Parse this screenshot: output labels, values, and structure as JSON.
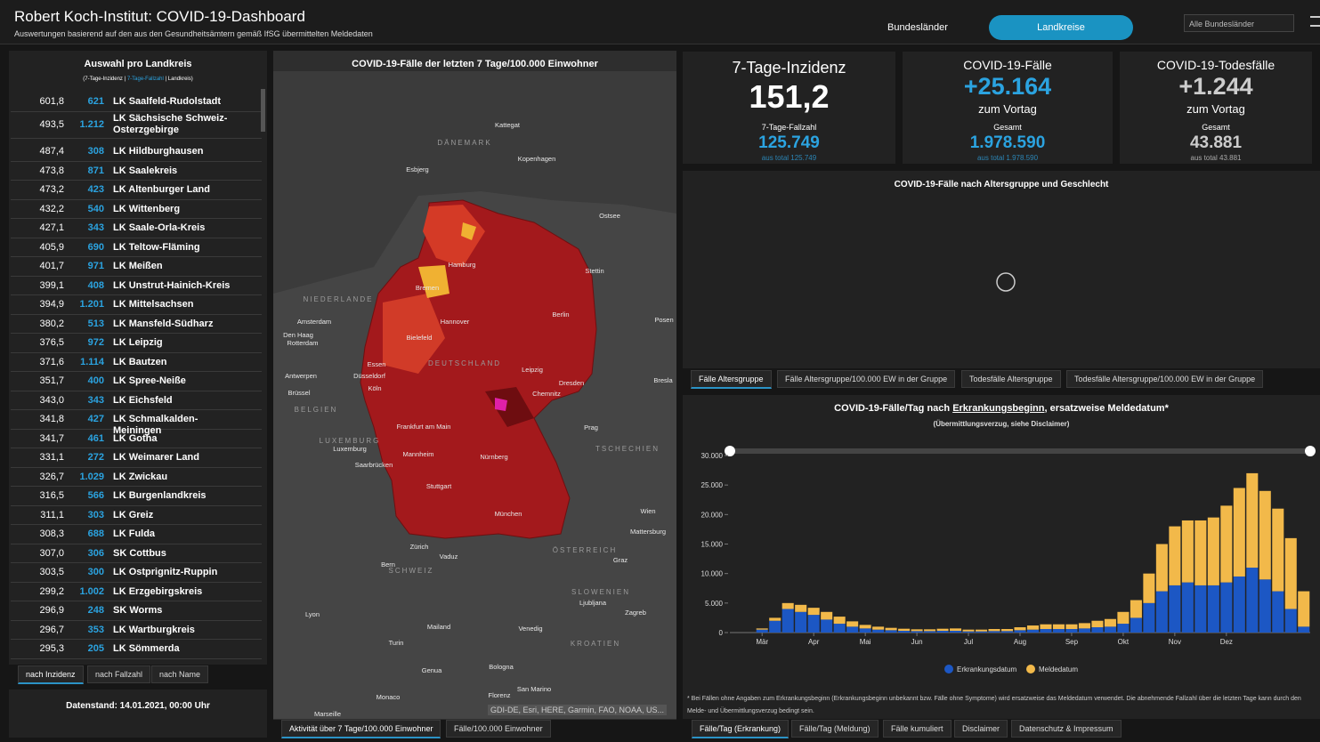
{
  "header": {
    "title": "Robert Koch-Institut: COVID-19-Dashboard",
    "subtitle": "Auswertungen basierend auf den aus den Gesundheitsämtern gemäß IfSG übermittelten Meldedaten",
    "nav": [
      "Bundesländer",
      "Landkreise"
    ],
    "dropdown": "Alle Bundesländer"
  },
  "district_list": {
    "title": "Auswahl pro Landkreis",
    "subtitle": [
      "(7-Tage-Inzidenz | ",
      "7-Tage-Fallzahl",
      " | Landkreis)"
    ],
    "rows": [
      [
        "601,8",
        "621",
        "LK Saalfeld-Rudolstadt"
      ],
      [
        "493,5",
        "1.212",
        "LK Sächsische Schweiz-Osterzgebirge"
      ],
      [
        "487,4",
        "308",
        "LK Hildburghausen"
      ],
      [
        "473,8",
        "871",
        "LK Saalekreis"
      ],
      [
        "473,2",
        "423",
        "LK Altenburger Land"
      ],
      [
        "432,2",
        "540",
        "LK Wittenberg"
      ],
      [
        "427,1",
        "343",
        "LK Saale-Orla-Kreis"
      ],
      [
        "405,9",
        "690",
        "LK Teltow-Fläming"
      ],
      [
        "401,7",
        "971",
        "LK Meißen"
      ],
      [
        "399,1",
        "408",
        "LK Unstrut-Hainich-Kreis"
      ],
      [
        "394,9",
        "1.201",
        "LK Mittelsachsen"
      ],
      [
        "380,2",
        "513",
        "LK Mansfeld-Südharz"
      ],
      [
        "376,5",
        "972",
        "LK Leipzig"
      ],
      [
        "371,6",
        "1.114",
        "LK Bautzen"
      ],
      [
        "351,7",
        "400",
        "LK Spree-Neiße"
      ],
      [
        "343,0",
        "343",
        "LK Eichsfeld"
      ],
      [
        "341,8",
        "427",
        "LK Schmalkalden-Meiningen"
      ],
      [
        "341,7",
        "461",
        "LK Gotha"
      ],
      [
        "331,1",
        "272",
        "LK Weimarer Land"
      ],
      [
        "326,7",
        "1.029",
        "LK Zwickau"
      ],
      [
        "316,5",
        "566",
        "LK Burgenlandkreis"
      ],
      [
        "311,1",
        "303",
        "LK Greiz"
      ],
      [
        "308,3",
        "688",
        "LK Fulda"
      ],
      [
        "307,0",
        "306",
        "SK Cottbus"
      ],
      [
        "303,5",
        "300",
        "LK Ostprignitz-Ruppin"
      ],
      [
        "299,2",
        "1.002",
        "LK Erzgebirgskreis"
      ],
      [
        "296,9",
        "248",
        "SK Worms"
      ],
      [
        "296,7",
        "353",
        "LK Wartburgkreis"
      ],
      [
        "295,3",
        "205",
        "LK Sömmerda"
      ]
    ],
    "sort_tabs": [
      "nach Inzidenz",
      "nach Fallzahl",
      "nach Name"
    ],
    "data_status": "Datenstand: 14.01.2021, 00:00 Uhr"
  },
  "map": {
    "title": "COVID-19-Fälle der letzten 7 Tage/100.000 Einwohner",
    "labels": [
      "Kattegat",
      "DÄNEMARK",
      "Kopenhagen",
      "Esbjerg",
      "Ostsee",
      "Hamburg",
      "Bremen",
      "Stettin",
      "NIEDERLANDE",
      "Hannover",
      "Berlin",
      "Amsterdam",
      "Posen",
      "Den Haag",
      "Rotterdam",
      "Bielefeld",
      "Essen",
      "DEUTSCHLAND",
      "Düsseldorf",
      "Leipzig",
      "Antwerpen",
      "Köln",
      "Dresden",
      "Brüssel",
      "Chemnitz",
      "Bresla",
      "BELGIEN",
      "Frankfurt am Main",
      "Prag",
      "LUXEMBURG",
      "Luxemburg",
      "TSCHECHIEN",
      "Saarbrücken",
      "Mannheim",
      "Nürnberg",
      "Stuttgart",
      "München",
      "Wien",
      "Mattersburg",
      "Zürich",
      "ÖSTERREICH",
      "Vaduz",
      "Graz",
      "Bern",
      "SCHWEIZ",
      "SLOWENIEN",
      "Ljubljana",
      "Lyon",
      "Zagreb",
      "Mailand",
      "Venedig",
      "Turin",
      "KROATIEN",
      "Genua",
      "Bologna",
      "San Marino",
      "Monaco",
      "Florenz",
      "Marseille"
    ],
    "attribution": "GDI-DE, Esri, HERE, Garmin, FAO, NOAA, US...",
    "tabs": [
      "Aktivität über 7 Tage/100.000 Einwohner",
      "Fälle/100.000 Einwohner"
    ]
  },
  "kpis": [
    {
      "title": "7-Tage-Inzidenz",
      "value": "151,2",
      "label": "7-Tage-Fallzahl",
      "sub_value": "125.749",
      "sub_total": "aus total 125.749"
    },
    {
      "title": "COVID-19-Fälle",
      "value": "+25.164",
      "value_note": "zum Vortag",
      "label": "Gesamt",
      "sub_value": "1.978.590",
      "sub_total": "aus total 1.978.590"
    },
    {
      "title": "COVID-19-Todesfälle",
      "value": "+1.244",
      "value_note": "zum Vortag",
      "label": "Gesamt",
      "sub_value": "43.881",
      "sub_total": "aus total 43.881"
    }
  ],
  "age_panel": {
    "title": "COVID-19-Fälle nach Altersgruppe und Geschlecht",
    "tabs": [
      "Fälle Altersgruppe",
      "Fälle Altersgruppe/100.000 EW in der Gruppe",
      "Todesfälle Altersgruppe",
      "Todesfälle Altersgruppe/100.000 EW in der Gruppe"
    ]
  },
  "chart_data": {
    "type": "bar",
    "stacked": true,
    "title": [
      "COVID-19-Fälle/Tag nach ",
      "Erkrankungsbeginn",
      ", ersatzweise Meldedatum*"
    ],
    "subtitle": "(Übermittlungsverzug, siehe Disclaimer)",
    "footnote": "* Bei Fällen ohne Angaben zum Erkrankungsbeginn (Erkrankungsbeginn unbekannt bzw. Fälle ohne Symptome) wird ersatzweise das Meldedatum verwendet. Die abnehmende Fallzahl über die letzten Tage kann durch den Melde- und Übermittlungsverzug bedingt sein.",
    "categories": [
      null,
      null,
      "Mär",
      null,
      null,
      null,
      "Apr",
      null,
      null,
      null,
      "Mai",
      null,
      null,
      null,
      "Jun",
      null,
      null,
      null,
      "Jul",
      null,
      null,
      null,
      "Aug",
      null,
      null,
      null,
      "Sep",
      null,
      null,
      null,
      "Okt",
      null,
      null,
      null,
      "Nov",
      null,
      null,
      null,
      "Dez",
      null,
      null,
      null,
      null,
      null,
      null
    ],
    "series": [
      {
        "name": "Erkrankungsdatum",
        "color": "#1c57c4",
        "values": [
          0,
          0,
          500,
          2000,
          4000,
          3500,
          3000,
          2200,
          1500,
          1000,
          700,
          500,
          400,
          300,
          250,
          250,
          300,
          300,
          200,
          200,
          250,
          250,
          400,
          500,
          600,
          600,
          600,
          700,
          900,
          1000,
          1500,
          2500,
          5000,
          7000,
          8000,
          8500,
          8000,
          8000,
          8500,
          9500,
          11000,
          9000,
          7000,
          4000,
          1000
        ]
      },
      {
        "name": "Meldedatum",
        "color": "#f2b94a",
        "values": [
          0,
          0,
          200,
          500,
          1000,
          1200,
          1200,
          1300,
          1200,
          900,
          600,
          500,
          400,
          350,
          300,
          300,
          350,
          400,
          300,
          300,
          350,
          350,
          500,
          700,
          800,
          800,
          800,
          900,
          1100,
          1300,
          2000,
          3000,
          5000,
          8000,
          10000,
          10500,
          11000,
          11500,
          13000,
          15000,
          16000,
          15000,
          14000,
          12000,
          6000
        ]
      }
    ],
    "ylim": [
      0,
      30000
    ],
    "yticks": [
      0,
      {
        "value": 5000,
        "label": "5.000"
      },
      {
        "value": 10000,
        "label": "10.000"
      },
      {
        "value": 15000,
        "label": "15.000"
      },
      {
        "value": 20000,
        "label": "20.000"
      },
      {
        "value": 25000,
        "label": "25.000"
      },
      {
        "value": 30000,
        "label": "30.000"
      }
    ],
    "legend": "bottom"
  },
  "bottom_tabs": [
    "Fälle/Tag (Erkrankung)",
    "Fälle/Tag (Meldung)",
    "Fälle kumuliert",
    "Disclaimer",
    "Datenschutz & Impressum"
  ]
}
